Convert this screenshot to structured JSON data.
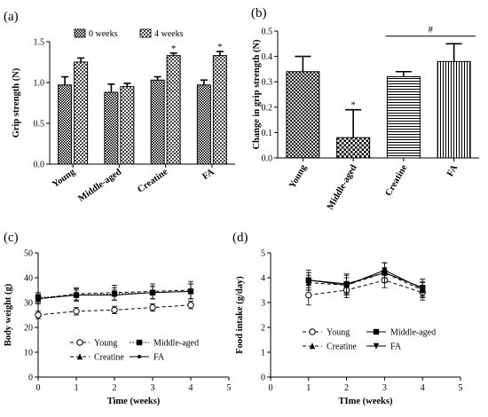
{
  "chart_data": [
    {
      "panel": "(a)",
      "type": "bar",
      "ylabel": "Grip strength (N)",
      "ylim": [
        0,
        1.5
      ],
      "yticks": [
        "0.0",
        "0.5",
        "1.0",
        "1.5"
      ],
      "categories": [
        "Young",
        "Middle-aged",
        "Creatine",
        "FA"
      ],
      "legend_position": "top",
      "series": [
        {
          "name": "0 weeks",
          "values": [
            0.97,
            0.88,
            1.03,
            0.97
          ],
          "errors": [
            0.1,
            0.1,
            0.04,
            0.06
          ],
          "pattern": "dense-checker"
        },
        {
          "name": "4 weeks",
          "values": [
            1.25,
            0.95,
            1.33,
            1.33
          ],
          "errors": [
            0.05,
            0.04,
            0.03,
            0.05
          ],
          "pattern": "light-checker"
        }
      ],
      "annotations": [
        {
          "text": "*",
          "category": "Creatine",
          "series": "4 weeks"
        },
        {
          "text": "*",
          "category": "FA",
          "series": "4 weeks"
        }
      ]
    },
    {
      "panel": "(b)",
      "type": "bar",
      "ylabel": "Change in grip strength (N)",
      "ylim": [
        0,
        0.5
      ],
      "yticks": [
        "0.0",
        "0.1",
        "0.2",
        "0.3",
        "0.4",
        "0.5"
      ],
      "categories": [
        "Young",
        "Middle-aged",
        "Creatine",
        "FA"
      ],
      "values": [
        0.34,
        0.08,
        0.32,
        0.38
      ],
      "errors": [
        0.06,
        0.11,
        0.02,
        0.07
      ],
      "patterns": [
        "crosshatch",
        "checker",
        "horizontal",
        "vertical"
      ],
      "annotations": [
        {
          "text": "*",
          "category": "Middle-aged"
        },
        {
          "text": "#",
          "span": [
            "Creatine",
            "FA"
          ],
          "y": 0.48
        }
      ]
    },
    {
      "panel": "(c)",
      "type": "line",
      "xlabel": "Time (weeks)",
      "ylabel": "Body weight (g)",
      "xlim": [
        0,
        5
      ],
      "ylim": [
        0,
        50
      ],
      "xticks": [
        "0",
        "1",
        "2",
        "3",
        "4",
        "5"
      ],
      "yticks": [
        "0",
        "10",
        "20",
        "30",
        "40",
        "50"
      ],
      "x": [
        0,
        1,
        2,
        3,
        4
      ],
      "legend_position": "bottom-center",
      "series": [
        {
          "name": "Young",
          "values": [
            25,
            26.5,
            27,
            28,
            29
          ],
          "errors": [
            1.5,
            1.5,
            1.5,
            1.5,
            1.5
          ],
          "marker": "open-circle",
          "dash": "dashed"
        },
        {
          "name": "Middle-aged",
          "values": [
            32,
            33,
            33.5,
            34,
            34.5
          ],
          "errors": [
            2,
            2.5,
            2.5,
            2.5,
            3
          ],
          "marker": "square",
          "dash": "dotted"
        },
        {
          "name": "Creatine",
          "values": [
            31.5,
            33.5,
            34,
            34.5,
            35
          ],
          "errors": [
            2,
            2.5,
            3,
            3,
            3.5
          ],
          "marker": "triangle-up",
          "dash": "dashed"
        },
        {
          "name": "FA",
          "values": [
            31.5,
            33,
            33,
            34,
            34.5
          ],
          "errors": [
            1.5,
            2,
            2,
            2.5,
            3
          ],
          "marker": "dot",
          "dash": "solid"
        }
      ]
    },
    {
      "panel": "(d)",
      "type": "line",
      "xlabel": "TIme (weeks)",
      "ylabel": "Food intake (g/day)",
      "xlim": [
        0,
        5
      ],
      "ylim": [
        0,
        5
      ],
      "xticks": [
        "0",
        "1",
        "2",
        "3",
        "4",
        "5"
      ],
      "yticks": [
        "0",
        "1",
        "2",
        "3",
        "4",
        "5"
      ],
      "x": [
        1,
        2,
        3,
        4
      ],
      "legend_position": "bottom-center",
      "series": [
        {
          "name": "Young",
          "values": [
            3.3,
            3.5,
            3.9,
            3.4
          ],
          "errors": [
            0.4,
            0.3,
            0.3,
            0.3
          ],
          "marker": "open-circle",
          "dash": "dashed"
        },
        {
          "name": "Middle-aged",
          "values": [
            3.9,
            3.75,
            4.2,
            3.6
          ],
          "errors": [
            0.4,
            0.4,
            0.4,
            0.35
          ],
          "marker": "square",
          "dash": "solid"
        },
        {
          "name": "Creatine",
          "values": [
            3.8,
            3.7,
            4.2,
            3.5
          ],
          "errors": [
            0.3,
            0.4,
            0.4,
            0.3
          ],
          "marker": "triangle-up",
          "dash": "dashed"
        },
        {
          "name": "FA",
          "values": [
            3.9,
            3.7,
            4.3,
            3.55
          ],
          "errors": [
            0.3,
            0.3,
            0.3,
            0.3
          ],
          "marker": "triangle-down",
          "dash": "solid"
        }
      ]
    }
  ]
}
